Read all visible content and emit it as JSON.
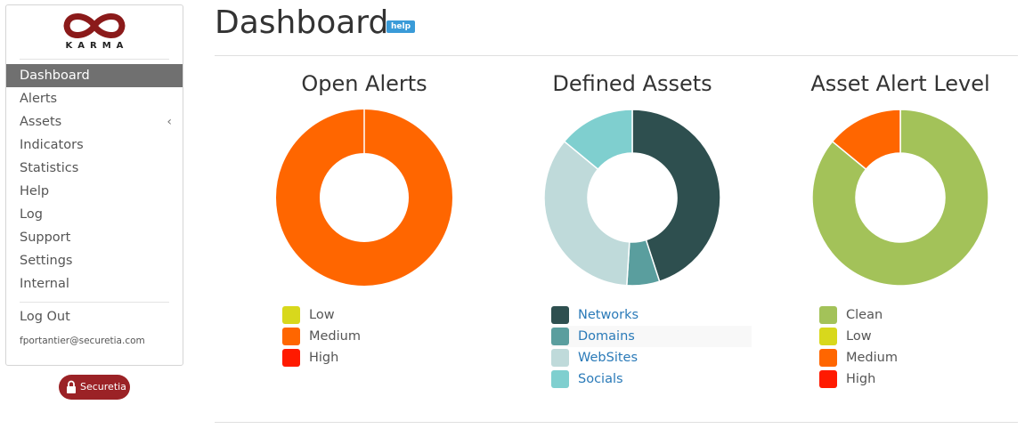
{
  "sidebar": {
    "logo_text": "KARMA",
    "items": [
      {
        "label": "Dashboard"
      },
      {
        "label": "Alerts"
      },
      {
        "label": "Assets"
      },
      {
        "label": "Indicators"
      },
      {
        "label": "Statistics"
      },
      {
        "label": "Help"
      },
      {
        "label": "Log"
      },
      {
        "label": "Support"
      },
      {
        "label": "Settings"
      },
      {
        "label": "Internal"
      }
    ],
    "active": "Dashboard",
    "logout_label": "Log Out",
    "user_email": "fportantier@securetia.com"
  },
  "brand": {
    "name": "Securetia",
    "color": "#9b2226"
  },
  "header": {
    "title": "Dashboard",
    "help_label": "help"
  },
  "charts": [
    {
      "title": "Open Alerts",
      "type": "pie",
      "legend": [
        {
          "label": "Low",
          "color": "#d8d81c",
          "value": 0,
          "link": false
        },
        {
          "label": "Medium",
          "color": "#ff6600",
          "value": 1,
          "link": false
        },
        {
          "label": "High",
          "color": "#ff1a00",
          "value": 0,
          "link": false
        }
      ]
    },
    {
      "title": "Defined Assets",
      "type": "pie",
      "legend": [
        {
          "label": "Networks",
          "color": "#2e4f4f",
          "value": 45,
          "link": true
        },
        {
          "label": "Domains",
          "color": "#5a9e9e",
          "value": 6,
          "link": true
        },
        {
          "label": "WebSites",
          "color": "#bfdada",
          "value": 35,
          "link": true
        },
        {
          "label": "Socials",
          "color": "#7fcfcf",
          "value": 14,
          "link": true
        }
      ]
    },
    {
      "title": "Asset Alert Level",
      "type": "pie",
      "legend": [
        {
          "label": "Clean",
          "color": "#a3c259",
          "value": 86,
          "link": false
        },
        {
          "label": "Low",
          "color": "#d8d81c",
          "value": 0,
          "link": false
        },
        {
          "label": "Medium",
          "color": "#ff6600",
          "value": 14,
          "link": false
        },
        {
          "label": "High",
          "color": "#ff1a00",
          "value": 0,
          "link": false
        }
      ]
    }
  ]
}
